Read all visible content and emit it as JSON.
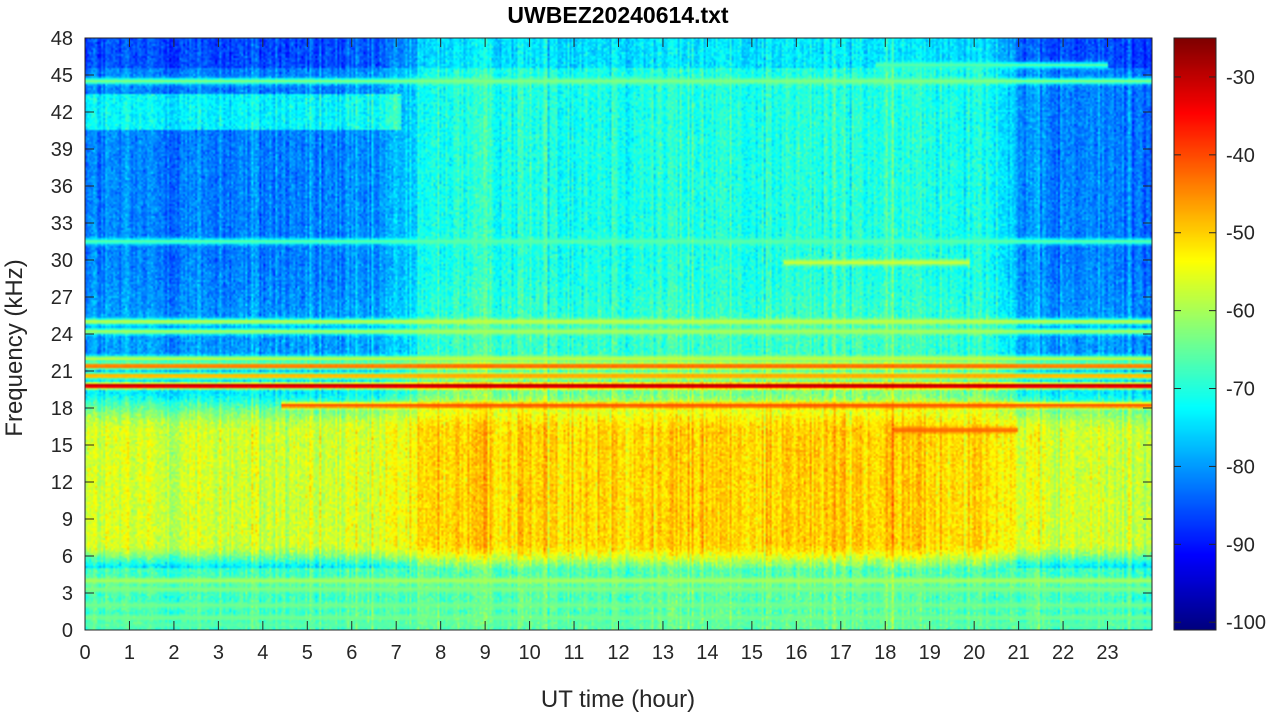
{
  "chart_data": {
    "type": "heatmap",
    "title": "UWBEZ20240614.txt",
    "xlabel": "UT time (hour)",
    "ylabel": "Frequency (kHz)",
    "xlim": [
      0,
      24
    ],
    "ylim": [
      0,
      48
    ],
    "x_ticks": [
      0,
      1,
      2,
      3,
      4,
      5,
      6,
      7,
      8,
      9,
      10,
      11,
      12,
      13,
      14,
      15,
      16,
      17,
      18,
      19,
      20,
      21,
      22,
      23
    ],
    "x_tick_labels": [
      "0",
      "1",
      "2",
      "3",
      "4",
      "5",
      "6",
      "7",
      "8",
      "9",
      "10",
      "11",
      "12",
      "13",
      "14",
      "15",
      "16",
      "17",
      "18",
      "19",
      "20",
      "21",
      "22",
      "23"
    ],
    "y_ticks": [
      0,
      3,
      6,
      9,
      12,
      15,
      18,
      21,
      24,
      27,
      30,
      33,
      36,
      39,
      42,
      45,
      48
    ],
    "y_tick_labels": [
      "0",
      "3",
      "6",
      "9",
      "12",
      "15",
      "18",
      "21",
      "24",
      "27",
      "30",
      "33",
      "36",
      "39",
      "42",
      "45",
      "48"
    ],
    "colorbar": {
      "colormap": "jet",
      "clim": [
        -101,
        -25
      ],
      "ticks": [
        -100,
        -90,
        -80,
        -70,
        -60,
        -50,
        -40,
        -30
      ],
      "tick_labels": [
        "-100",
        "-90",
        "-80",
        "-70",
        "-60",
        "-50",
        "-40",
        "-30"
      ]
    },
    "features": {
      "narrowband_lines": [
        {
          "freq_khz": 19.8,
          "level_db": -27,
          "t_start": 0,
          "t_end": 24
        },
        {
          "freq_khz": 21.4,
          "level_db": -40,
          "t_start": 0,
          "t_end": 24
        },
        {
          "freq_khz": 18.2,
          "level_db": -40,
          "t_start": 4.4,
          "t_end": 24
        },
        {
          "freq_khz": 20.6,
          "level_db": -45,
          "t_start": 0,
          "t_end": 24
        },
        {
          "freq_khz": 44.5,
          "level_db": -63,
          "t_start": 0,
          "t_end": 24
        },
        {
          "freq_khz": 25.0,
          "level_db": -58,
          "t_start": 0,
          "t_end": 24
        },
        {
          "freq_khz": 24.2,
          "level_db": -60,
          "t_start": 0,
          "t_end": 24
        },
        {
          "freq_khz": 22.0,
          "level_db": -58,
          "t_start": 0,
          "t_end": 24
        },
        {
          "freq_khz": 4.0,
          "level_db": -60,
          "t_start": 0,
          "t_end": 24
        },
        {
          "freq_khz": 3.3,
          "level_db": -63,
          "t_start": 0,
          "t_end": 24
        },
        {
          "freq_khz": 2.0,
          "level_db": -64,
          "t_start": 0,
          "t_end": 24
        },
        {
          "freq_khz": 1.0,
          "level_db": -64,
          "t_start": 0,
          "t_end": 24
        },
        {
          "freq_khz": 0.4,
          "level_db": -66,
          "t_start": 0,
          "t_end": 24
        },
        {
          "freq_khz": 31.5,
          "level_db": -66,
          "t_start": 0,
          "t_end": 24
        },
        {
          "freq_khz": 29.8,
          "level_db": -57,
          "t_start": 15.7,
          "t_end": 19.9
        },
        {
          "freq_khz": 45.8,
          "level_db": -66,
          "t_start": 17.8,
          "t_end": 23.0
        },
        {
          "freq_khz": 16.2,
          "level_db": -42,
          "t_start": 18.2,
          "t_end": 21.0
        }
      ],
      "broadband_noise": {
        "freq_range_khz": [
          5,
          17
        ],
        "day_level_db": -50,
        "night_level_db": -57
      },
      "upper_band_background": {
        "freq_range_khz": [
          24,
          48
        ],
        "night_level_db": -82,
        "day_level_db": -70
      }
    }
  }
}
